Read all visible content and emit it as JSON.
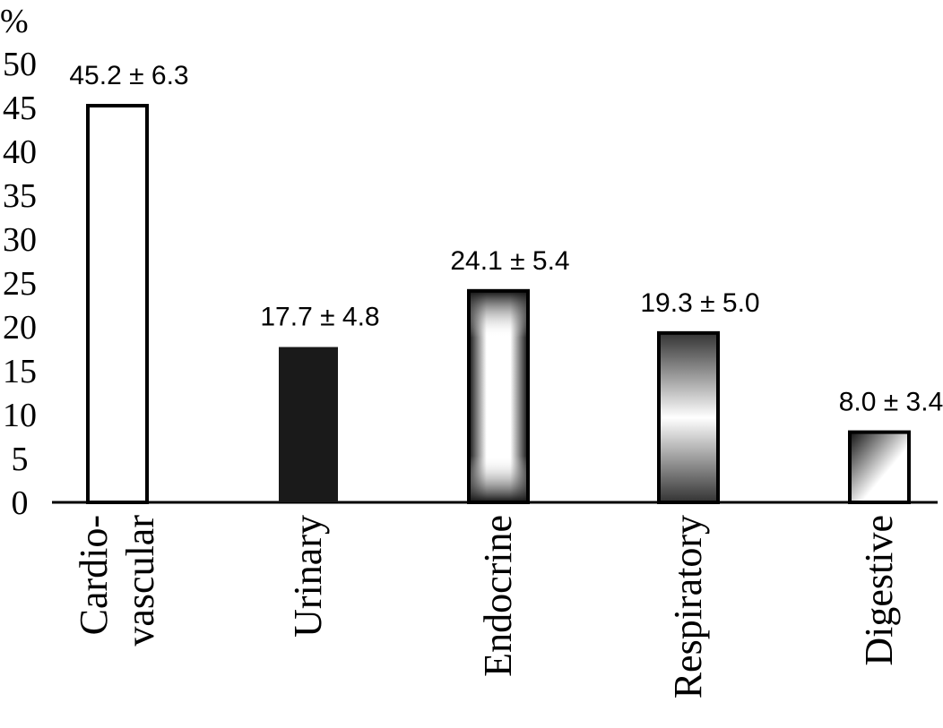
{
  "chart_data": {
    "type": "bar",
    "ylabel": "%",
    "ylim": [
      0,
      50
    ],
    "yticks": [
      0,
      5,
      10,
      15,
      20,
      25,
      30,
      35,
      40,
      45,
      50
    ],
    "categories": [
      {
        "lines": [
          "Cardio-",
          "vascular"
        ]
      },
      {
        "lines": [
          "Urinary"
        ]
      },
      {
        "lines": [
          "Endocrine"
        ]
      },
      {
        "lines": [
          "Respiratory"
        ]
      },
      {
        "lines": [
          "Digestive"
        ]
      }
    ],
    "values": [
      45.2,
      17.7,
      24.1,
      19.3,
      8.0
    ],
    "data_labels": [
      "45.2 ± 6.3",
      "17.7 ± 4.8",
      "24.1 ± 5.4",
      "19.3 ± 5.0",
      "8.0 ± 3.4"
    ],
    "bar_styles": [
      "white",
      "black",
      "vertical-gradient-band",
      "horizontal-gradient",
      "corner-gradient"
    ],
    "colors": {
      "axis": "#000000",
      "bar_outline": "#000000",
      "dark_fill": "#1a1a1a"
    },
    "grid": false,
    "legend": "none"
  }
}
